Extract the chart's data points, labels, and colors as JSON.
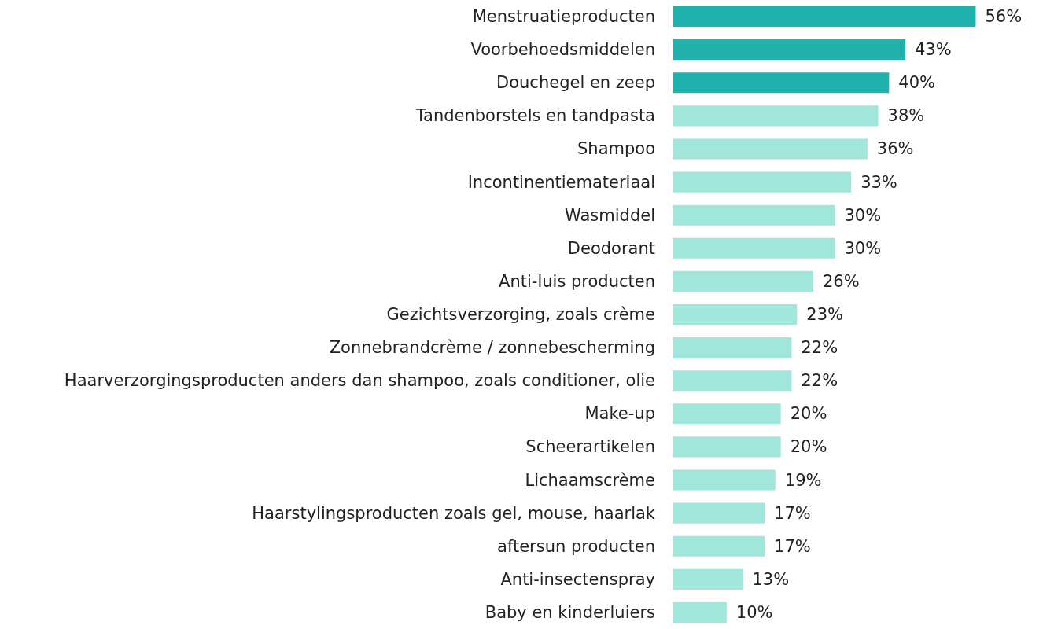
{
  "chart_data": {
    "type": "bar",
    "orientation": "horizontal",
    "categories": [
      "Menstruatieproducten",
      "Voorbehoedsmiddelen",
      "Douchegel en zeep",
      "Tandenborstels en tandpasta",
      "Shampoo",
      "Incontinentiemateriaal",
      "Wasmiddel",
      "Deodorant",
      "Anti-luis producten",
      "Gezichtsverzorging, zoals crème",
      "Zonnebrandcrème / zonnebescherming",
      "Haarverzorgingsproducten anders dan shampoo, zoals conditioner, olie",
      "Make-up",
      "Scheerartikelen",
      "Lichaamscrème",
      "Haarstylingsproducten zoals gel, mouse, haarlak",
      "aftersun producten",
      "Anti-insectenspray",
      "Baby en kinderluiers"
    ],
    "values": [
      56,
      43,
      40,
      38,
      36,
      33,
      30,
      30,
      26,
      23,
      22,
      22,
      20,
      20,
      19,
      17,
      17,
      13,
      10
    ],
    "value_labels": [
      "56%",
      "43%",
      "40%",
      "38%",
      "36%",
      "33%",
      "30%",
      "30%",
      "26%",
      "23%",
      "22%",
      "22%",
      "20%",
      "20%",
      "19%",
      "17%",
      "17%",
      "13%",
      "10%"
    ],
    "colors": [
      "#20b2ad",
      "#20b2ad",
      "#20b2ad",
      "#a0e6da",
      "#a0e6da",
      "#a0e6da",
      "#a0e6da",
      "#a0e6da",
      "#a0e6da",
      "#a0e6da",
      "#a0e6da",
      "#a0e6da",
      "#a0e6da",
      "#a0e6da",
      "#a0e6da",
      "#a0e6da",
      "#a0e6da",
      "#a0e6da",
      "#a0e6da"
    ],
    "grid": false
  }
}
